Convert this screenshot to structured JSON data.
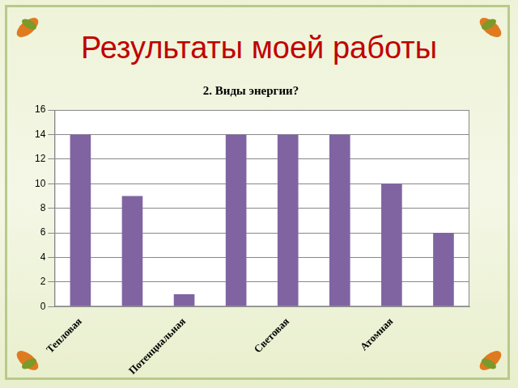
{
  "heading": "Результаты моей работы",
  "chart_data": {
    "type": "bar",
    "title": "2. Виды энергии?",
    "categories": [
      "Тепловая",
      null,
      "Потенциальная",
      null,
      "Световая",
      null,
      "Атомная",
      null
    ],
    "values": [
      14,
      9,
      1,
      14,
      14,
      14,
      10,
      6
    ],
    "color": "#8064a2",
    "ylim": [
      0,
      16
    ],
    "yticks": [
      0,
      2,
      4,
      6,
      8,
      10,
      12,
      14,
      16
    ],
    "grid": true
  }
}
